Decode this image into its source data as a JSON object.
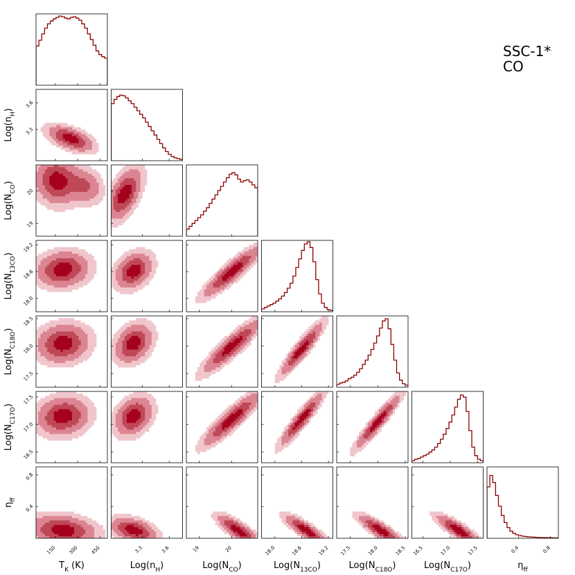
{
  "figure": {
    "label_line1": "SSC-1*",
    "label_line2": "CO"
  },
  "colors": {
    "line": "#8b0000",
    "level1": "#f0c6cc",
    "level2": "#dc8592",
    "level3": "#bf4858",
    "level4": "#a5001e"
  },
  "chart_data": {
    "type": "corner",
    "params": [
      {
        "key": "TK",
        "label": "T",
        "sub": "K",
        "suffix": " (K)",
        "range": [
          20,
          500
        ],
        "ticks": [
          150,
          300,
          450
        ]
      },
      {
        "key": "nH",
        "label": "Log(n",
        "sub": "H",
        "suffix": ")",
        "range": [
          2.95,
          3.75
        ],
        "ticks": [
          3.3,
          3.6
        ]
      },
      {
        "key": "NCO",
        "label": "Log(N",
        "sub": "CO",
        "suffix": ")",
        "range": [
          18.6,
          20.8
        ],
        "ticks": [
          19,
          20
        ]
      },
      {
        "key": "N13CO",
        "label": "Log(N",
        "sub": "13CO",
        "suffix": ")",
        "range": [
          17.7,
          19.3
        ],
        "ticks": [
          18.0,
          18.6,
          19.2
        ]
      },
      {
        "key": "NC18O",
        "label": "Log(N",
        "sub": "C18O",
        "suffix": ")",
        "range": [
          17.25,
          18.55
        ],
        "ticks": [
          17.5,
          18.0,
          18.5
        ]
      },
      {
        "key": "NC17O",
        "label": "Log(N",
        "sub": "C17O",
        "suffix": ")",
        "range": [
          16.3,
          17.6
        ],
        "ticks": [
          16.5,
          17.0,
          17.5
        ]
      },
      {
        "key": "eta",
        "label": "η",
        "sub": "ff",
        "suffix": "",
        "range": [
          0.0,
          0.9
        ],
        "ticks": [
          0.4,
          0.8
        ]
      }
    ],
    "tick_labels": {
      "TK": [
        "150",
        "300",
        "450"
      ],
      "nH": [
        "3.3",
        "3.6"
      ],
      "NCO": [
        "19",
        "20"
      ],
      "N13CO": [
        "18.0",
        "18.6",
        "19.2"
      ],
      "NC18O": [
        "17.5",
        "18.0",
        "18.5"
      ],
      "NC17O": [
        "16.5",
        "17.0",
        "17.5"
      ],
      "eta": [
        "0.4",
        "0.8"
      ]
    },
    "histograms": [
      [
        0.55,
        0.63,
        0.72,
        0.8,
        0.86,
        0.9,
        0.93,
        0.95,
        0.97,
        0.96,
        0.94,
        0.93,
        0.95,
        0.96,
        0.94,
        0.91,
        0.86,
        0.8,
        0.72,
        0.64,
        0.56,
        0.48,
        0.43,
        0.4,
        0.38
      ],
      [
        0.8,
        0.86,
        0.9,
        0.92,
        0.91,
        0.88,
        0.84,
        0.8,
        0.75,
        0.7,
        0.65,
        0.6,
        0.54,
        0.48,
        0.42,
        0.36,
        0.3,
        0.24,
        0.18,
        0.13,
        0.09,
        0.06,
        0.04,
        0.03,
        0.02
      ],
      [
        0.1,
        0.14,
        0.18,
        0.22,
        0.26,
        0.3,
        0.35,
        0.4,
        0.46,
        0.52,
        0.58,
        0.64,
        0.7,
        0.76,
        0.82,
        0.87,
        0.89,
        0.86,
        0.8,
        0.76,
        0.78,
        0.79,
        0.76,
        0.72,
        0.68
      ],
      [
        0.04,
        0.06,
        0.08,
        0.1,
        0.12,
        0.15,
        0.18,
        0.22,
        0.27,
        0.33,
        0.4,
        0.5,
        0.62,
        0.74,
        0.86,
        0.95,
        0.98,
        0.9,
        0.7,
        0.45,
        0.25,
        0.12,
        0.06,
        0.03,
        0.02
      ],
      [
        0.04,
        0.06,
        0.07,
        0.09,
        0.12,
        0.14,
        0.17,
        0.21,
        0.26,
        0.32,
        0.38,
        0.45,
        0.53,
        0.62,
        0.72,
        0.83,
        0.93,
        0.96,
        0.82,
        0.6,
        0.38,
        0.2,
        0.1,
        0.05,
        0.03
      ],
      [
        0.03,
        0.05,
        0.06,
        0.08,
        0.1,
        0.12,
        0.15,
        0.18,
        0.22,
        0.27,
        0.33,
        0.4,
        0.48,
        0.57,
        0.67,
        0.78,
        0.89,
        0.95,
        0.92,
        0.72,
        0.45,
        0.22,
        0.1,
        0.05,
        0.03
      ],
      [
        0.72,
        0.88,
        0.78,
        0.6,
        0.45,
        0.32,
        0.22,
        0.15,
        0.1,
        0.07,
        0.05,
        0.04,
        0.03,
        0.025,
        0.02,
        0.018,
        0.015,
        0.013,
        0.011,
        0.01,
        0.009,
        0.008,
        0.007,
        0.006,
        0.005
      ]
    ],
    "contour_levels": [
      0.12,
      0.3,
      0.58,
      0.84
    ],
    "joint_modes": {
      "1-0": [
        [
          250,
          3.2,
          95,
          0.09,
          -0.55,
          1.0
        ]
      ],
      "2-0": [
        [
          160,
          20.3,
          90,
          0.45,
          -0.1,
          1.0
        ],
        [
          360,
          20.15,
          70,
          0.35,
          -0.2,
          0.55
        ]
      ],
      "2-1": [
        [
          3.1,
          19.9,
          0.12,
          0.5,
          0.55,
          1.0
        ]
      ],
      "3-0": [
        [
          200,
          18.65,
          110,
          0.25,
          0.1,
          1.0
        ]
      ],
      "3-1": [
        [
          3.2,
          18.62,
          0.13,
          0.25,
          0.3,
          1.0
        ]
      ],
      "3-2": [
        [
          20.0,
          18.6,
          0.55,
          0.35,
          0.9,
          1.0
        ]
      ],
      "4-0": [
        [
          200,
          18.05,
          110,
          0.22,
          0.1,
          1.0
        ]
      ],
      "4-1": [
        [
          3.2,
          18.05,
          0.13,
          0.22,
          0.3,
          1.0
        ]
      ],
      "4-2": [
        [
          20.0,
          18.0,
          0.55,
          0.3,
          0.9,
          1.0
        ]
      ],
      "4-3": [
        [
          18.6,
          17.95,
          0.3,
          0.3,
          0.92,
          1.0
        ]
      ],
      "5-0": [
        [
          200,
          17.15,
          110,
          0.22,
          0.1,
          1.0
        ]
      ],
      "5-1": [
        [
          3.2,
          17.15,
          0.13,
          0.22,
          0.3,
          1.0
        ]
      ],
      "5-2": [
        [
          20.0,
          17.1,
          0.55,
          0.3,
          0.9,
          1.0
        ]
      ],
      "5-3": [
        [
          18.6,
          17.1,
          0.3,
          0.3,
          0.93,
          1.0
        ]
      ],
      "5-4": [
        [
          18.0,
          17.05,
          0.25,
          0.3,
          0.94,
          1.0
        ]
      ],
      "6-0": [
        [
          200,
          0.1,
          140,
          0.12,
          -0.2,
          1.0
        ]
      ],
      "6-1": [
        [
          3.2,
          0.1,
          0.16,
          0.1,
          -0.4,
          1.0
        ]
      ],
      "6-2": [
        [
          20.2,
          0.1,
          0.4,
          0.12,
          -0.8,
          1.0
        ]
      ],
      "6-3": [
        [
          18.7,
          0.1,
          0.3,
          0.12,
          -0.85,
          1.0
        ]
      ],
      "6-4": [
        [
          18.05,
          0.1,
          0.25,
          0.12,
          -0.85,
          1.0
        ]
      ],
      "6-5": [
        [
          17.15,
          0.1,
          0.25,
          0.12,
          -0.85,
          1.0
        ]
      ]
    }
  }
}
